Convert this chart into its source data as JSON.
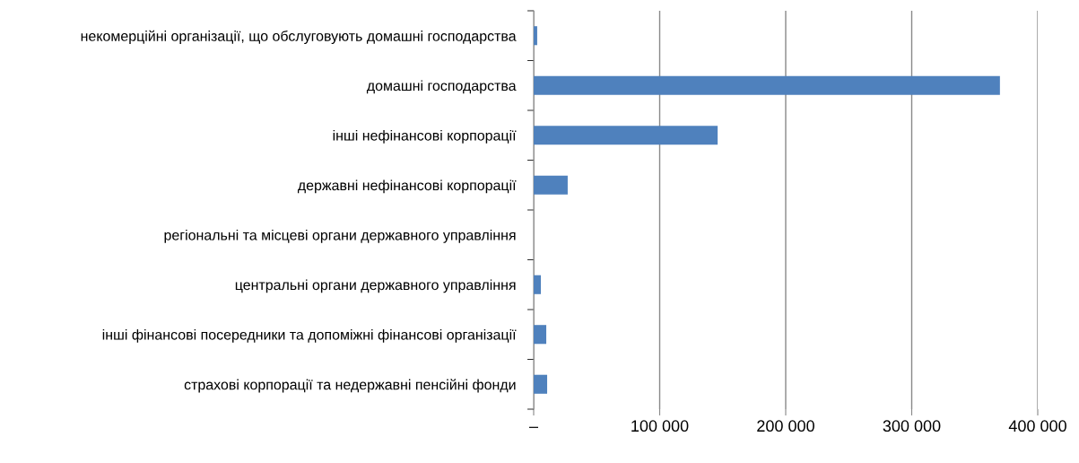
{
  "chart_data": {
    "type": "bar",
    "orientation": "horizontal",
    "categories": [
      "некомерційні організації, що обслуговують домашні господарства",
      "домашні господарства",
      "інші нефінансові корпорації",
      "державні нефінансові корпорації",
      "регіональні та місцеві органи державного управління",
      "центральні органи державного управління",
      "інші фінансові посередники та допоміжні фінансові організації",
      "страхові корпорації та недержавні пенсійні фонди"
    ],
    "values": [
      2800,
      370000,
      146000,
      27000,
      0,
      5700,
      10000,
      10700
    ],
    "color": "#4f81bd",
    "xlim": [
      0,
      400000
    ],
    "xticks": [
      {
        "value": 0,
        "label": "–"
      },
      {
        "value": 100000,
        "label": "100 000"
      },
      {
        "value": 200000,
        "label": "200 000"
      },
      {
        "value": 300000,
        "label": "300 000"
      },
      {
        "value": 400000,
        "label": "400 000"
      }
    ],
    "grid": "x",
    "legend": false
  }
}
